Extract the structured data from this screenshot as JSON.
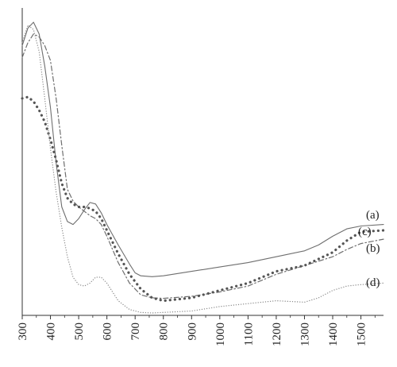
{
  "chart_data": {
    "type": "line",
    "title": "",
    "xlabel": "",
    "ylabel": "",
    "xlim": [
      300,
      1580
    ],
    "ylim": [
      0,
      1
    ],
    "x_ticks": [
      300,
      400,
      500,
      600,
      700,
      800,
      900,
      1000,
      1100,
      1200,
      1300,
      1400,
      1500
    ],
    "grid": false,
    "legend": "inline labels at right end of curves",
    "series": [
      {
        "name": "(a)",
        "style": "solid",
        "color": "#6e6e6e",
        "x": [
          300,
          320,
          340,
          360,
          380,
          400,
          420,
          440,
          460,
          480,
          500,
          520,
          540,
          560,
          580,
          600,
          640,
          680,
          700,
          720,
          760,
          800,
          900,
          1000,
          1100,
          1200,
          1300,
          1350,
          1400,
          1450,
          1500,
          1580
        ],
        "y": [
          0.92,
          0.98,
          1.0,
          0.96,
          0.85,
          0.71,
          0.52,
          0.37,
          0.32,
          0.31,
          0.33,
          0.36,
          0.385,
          0.38,
          0.35,
          0.31,
          0.24,
          0.175,
          0.145,
          0.135,
          0.132,
          0.135,
          0.15,
          0.165,
          0.18,
          0.2,
          0.22,
          0.24,
          0.27,
          0.295,
          0.305,
          0.31
        ]
      },
      {
        "name": "(b)",
        "style": "dash-dot",
        "color": "#6e6e6e",
        "x": [
          300,
          320,
          340,
          360,
          380,
          400,
          420,
          440,
          460,
          480,
          500,
          520,
          540,
          560,
          580,
          600,
          640,
          680,
          720,
          760,
          800,
          900,
          1000,
          1100,
          1200,
          1300,
          1400,
          1450,
          1500,
          1580
        ],
        "y": [
          0.88,
          0.93,
          0.96,
          0.95,
          0.92,
          0.87,
          0.74,
          0.58,
          0.43,
          0.39,
          0.37,
          0.355,
          0.34,
          0.33,
          0.31,
          0.27,
          0.18,
          0.11,
          0.07,
          0.06,
          0.058,
          0.065,
          0.08,
          0.1,
          0.14,
          0.17,
          0.2,
          0.225,
          0.245,
          0.26
        ]
      },
      {
        "name": "(c)",
        "style": "dotted-heavy",
        "color": "#555555",
        "x": [
          300,
          320,
          340,
          360,
          380,
          400,
          420,
          440,
          460,
          480,
          500,
          520,
          540,
          560,
          580,
          600,
          640,
          680,
          720,
          760,
          800,
          900,
          1000,
          1100,
          1200,
          1300,
          1400,
          1450,
          1500,
          1580
        ],
        "y": [
          0.74,
          0.745,
          0.73,
          0.7,
          0.66,
          0.6,
          0.53,
          0.45,
          0.4,
          0.38,
          0.37,
          0.37,
          0.365,
          0.355,
          0.33,
          0.29,
          0.21,
          0.14,
          0.09,
          0.06,
          0.05,
          0.06,
          0.085,
          0.11,
          0.15,
          0.17,
          0.215,
          0.255,
          0.285,
          0.29
        ]
      },
      {
        "name": "(d)",
        "style": "dotted-fine",
        "color": "#8a8a8a",
        "x": [
          300,
          320,
          340,
          360,
          380,
          400,
          420,
          440,
          460,
          480,
          500,
          520,
          540,
          560,
          580,
          600,
          640,
          680,
          720,
          760,
          800,
          900,
          1000,
          1100,
          1150,
          1200,
          1300,
          1350,
          1400,
          1450,
          1500,
          1580
        ],
        "y": [
          0.93,
          0.99,
          0.975,
          0.9,
          0.74,
          0.57,
          0.42,
          0.3,
          0.2,
          0.13,
          0.105,
          0.1,
          0.11,
          0.13,
          0.13,
          0.11,
          0.05,
          0.02,
          0.01,
          0.008,
          0.01,
          0.015,
          0.03,
          0.04,
          0.045,
          0.05,
          0.045,
          0.06,
          0.085,
          0.1,
          0.105,
          0.11
        ]
      }
    ]
  }
}
